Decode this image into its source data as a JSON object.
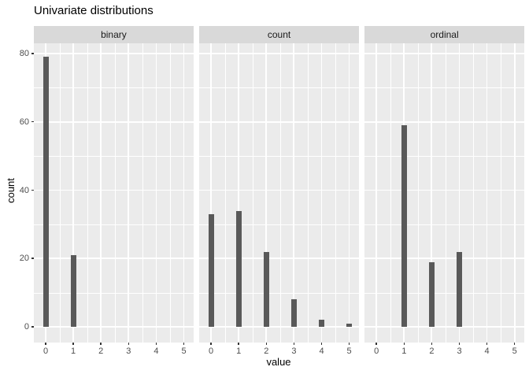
{
  "chart_data": {
    "type": "bar",
    "title": "Univariate distributions",
    "xlabel": "value",
    "ylabel": "count",
    "legend": "none",
    "grid": "major+minor",
    "x_ticks": [
      0,
      1,
      2,
      3,
      4,
      5
    ],
    "y_ticks": [
      0,
      20,
      40,
      60,
      80
    ],
    "y_minor_ticks": [
      10,
      30,
      50,
      70
    ],
    "xlim": [
      -0.43,
      5.37
    ],
    "ylim": [
      -4.6,
      83
    ],
    "facets": [
      {
        "label": "binary",
        "bars": [
          {
            "x": 0,
            "count": 79
          },
          {
            "x": 1,
            "count": 21
          }
        ]
      },
      {
        "label": "count",
        "bars": [
          {
            "x": 0,
            "count": 33
          },
          {
            "x": 1,
            "count": 34
          },
          {
            "x": 2,
            "count": 22
          },
          {
            "x": 3,
            "count": 8
          },
          {
            "x": 4,
            "count": 2
          },
          {
            "x": 5,
            "count": 1
          }
        ]
      },
      {
        "label": "ordinal",
        "bars": [
          {
            "x": 1,
            "count": 59
          },
          {
            "x": 2,
            "count": 19
          },
          {
            "x": 3,
            "count": 22
          }
        ]
      }
    ],
    "colors": {
      "bar": "#595959",
      "panel_bg": "#EBEBEB",
      "strip_bg": "#D9D9D9",
      "gridline": "#FFFFFF",
      "tick_label": "#4D4D4D",
      "tick_mark": "#333333",
      "text": "#000000"
    }
  }
}
